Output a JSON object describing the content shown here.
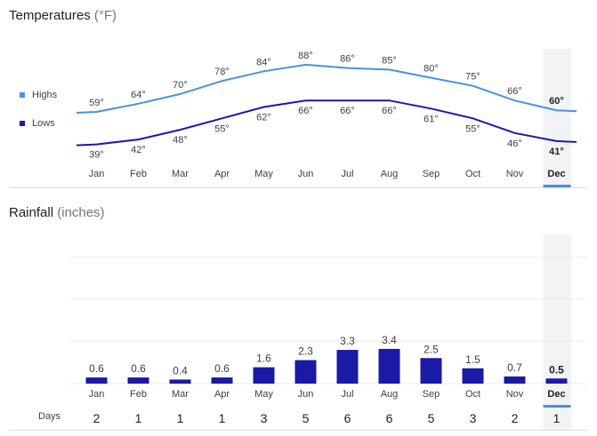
{
  "temperature": {
    "title": "Temperatures",
    "unit": "(°F)",
    "legend": [
      {
        "label": "Highs",
        "color": "#4a90e2"
      },
      {
        "label": "Lows",
        "color": "#1a1aa6"
      }
    ],
    "months": [
      "Jan",
      "Feb",
      "Mar",
      "Apr",
      "May",
      "Jun",
      "Jul",
      "Aug",
      "Sep",
      "Oct",
      "Nov",
      "Dec"
    ],
    "highs": [
      59,
      64,
      70,
      78,
      84,
      88,
      86,
      85,
      80,
      75,
      66,
      60
    ],
    "lows": [
      39,
      42,
      48,
      55,
      62,
      66,
      66,
      66,
      61,
      55,
      46,
      41
    ],
    "selected_month": "Dec"
  },
  "rainfall": {
    "title": "Rainfall",
    "unit": "(inches)",
    "months": [
      "Jan",
      "Feb",
      "Mar",
      "Apr",
      "May",
      "Jun",
      "Jul",
      "Aug",
      "Sep",
      "Oct",
      "Nov",
      "Dec"
    ],
    "values": [
      0.6,
      0.6,
      0.4,
      0.6,
      1.6,
      2.3,
      3.3,
      3.4,
      2.5,
      1.5,
      0.7,
      0.5
    ],
    "days_label": "Days",
    "days": [
      2,
      1,
      1,
      1,
      3,
      5,
      6,
      6,
      5,
      3,
      2,
      1
    ],
    "bar_color": "#1a1aa6"
  },
  "chart_data": [
    {
      "type": "line",
      "title": "Temperatures (°F)",
      "x": [
        "Jan",
        "Feb",
        "Mar",
        "Apr",
        "May",
        "Jun",
        "Jul",
        "Aug",
        "Sep",
        "Oct",
        "Nov",
        "Dec"
      ],
      "series": [
        {
          "name": "Highs",
          "values": [
            59,
            64,
            70,
            78,
            84,
            88,
            86,
            85,
            80,
            75,
            66,
            60
          ]
        },
        {
          "name": "Lows",
          "values": [
            39,
            42,
            48,
            55,
            62,
            66,
            66,
            66,
            61,
            55,
            46,
            41
          ]
        }
      ],
      "legend": "left"
    },
    {
      "type": "bar",
      "title": "Rainfall (inches)",
      "categories": [
        "Jan",
        "Feb",
        "Mar",
        "Apr",
        "May",
        "Jun",
        "Jul",
        "Aug",
        "Sep",
        "Oct",
        "Nov",
        "Dec"
      ],
      "values": [
        0.6,
        0.6,
        0.4,
        0.6,
        1.6,
        2.3,
        3.3,
        3.4,
        2.5,
        1.5,
        0.7,
        0.5
      ],
      "ylim": [
        0,
        3.6
      ]
    }
  ]
}
